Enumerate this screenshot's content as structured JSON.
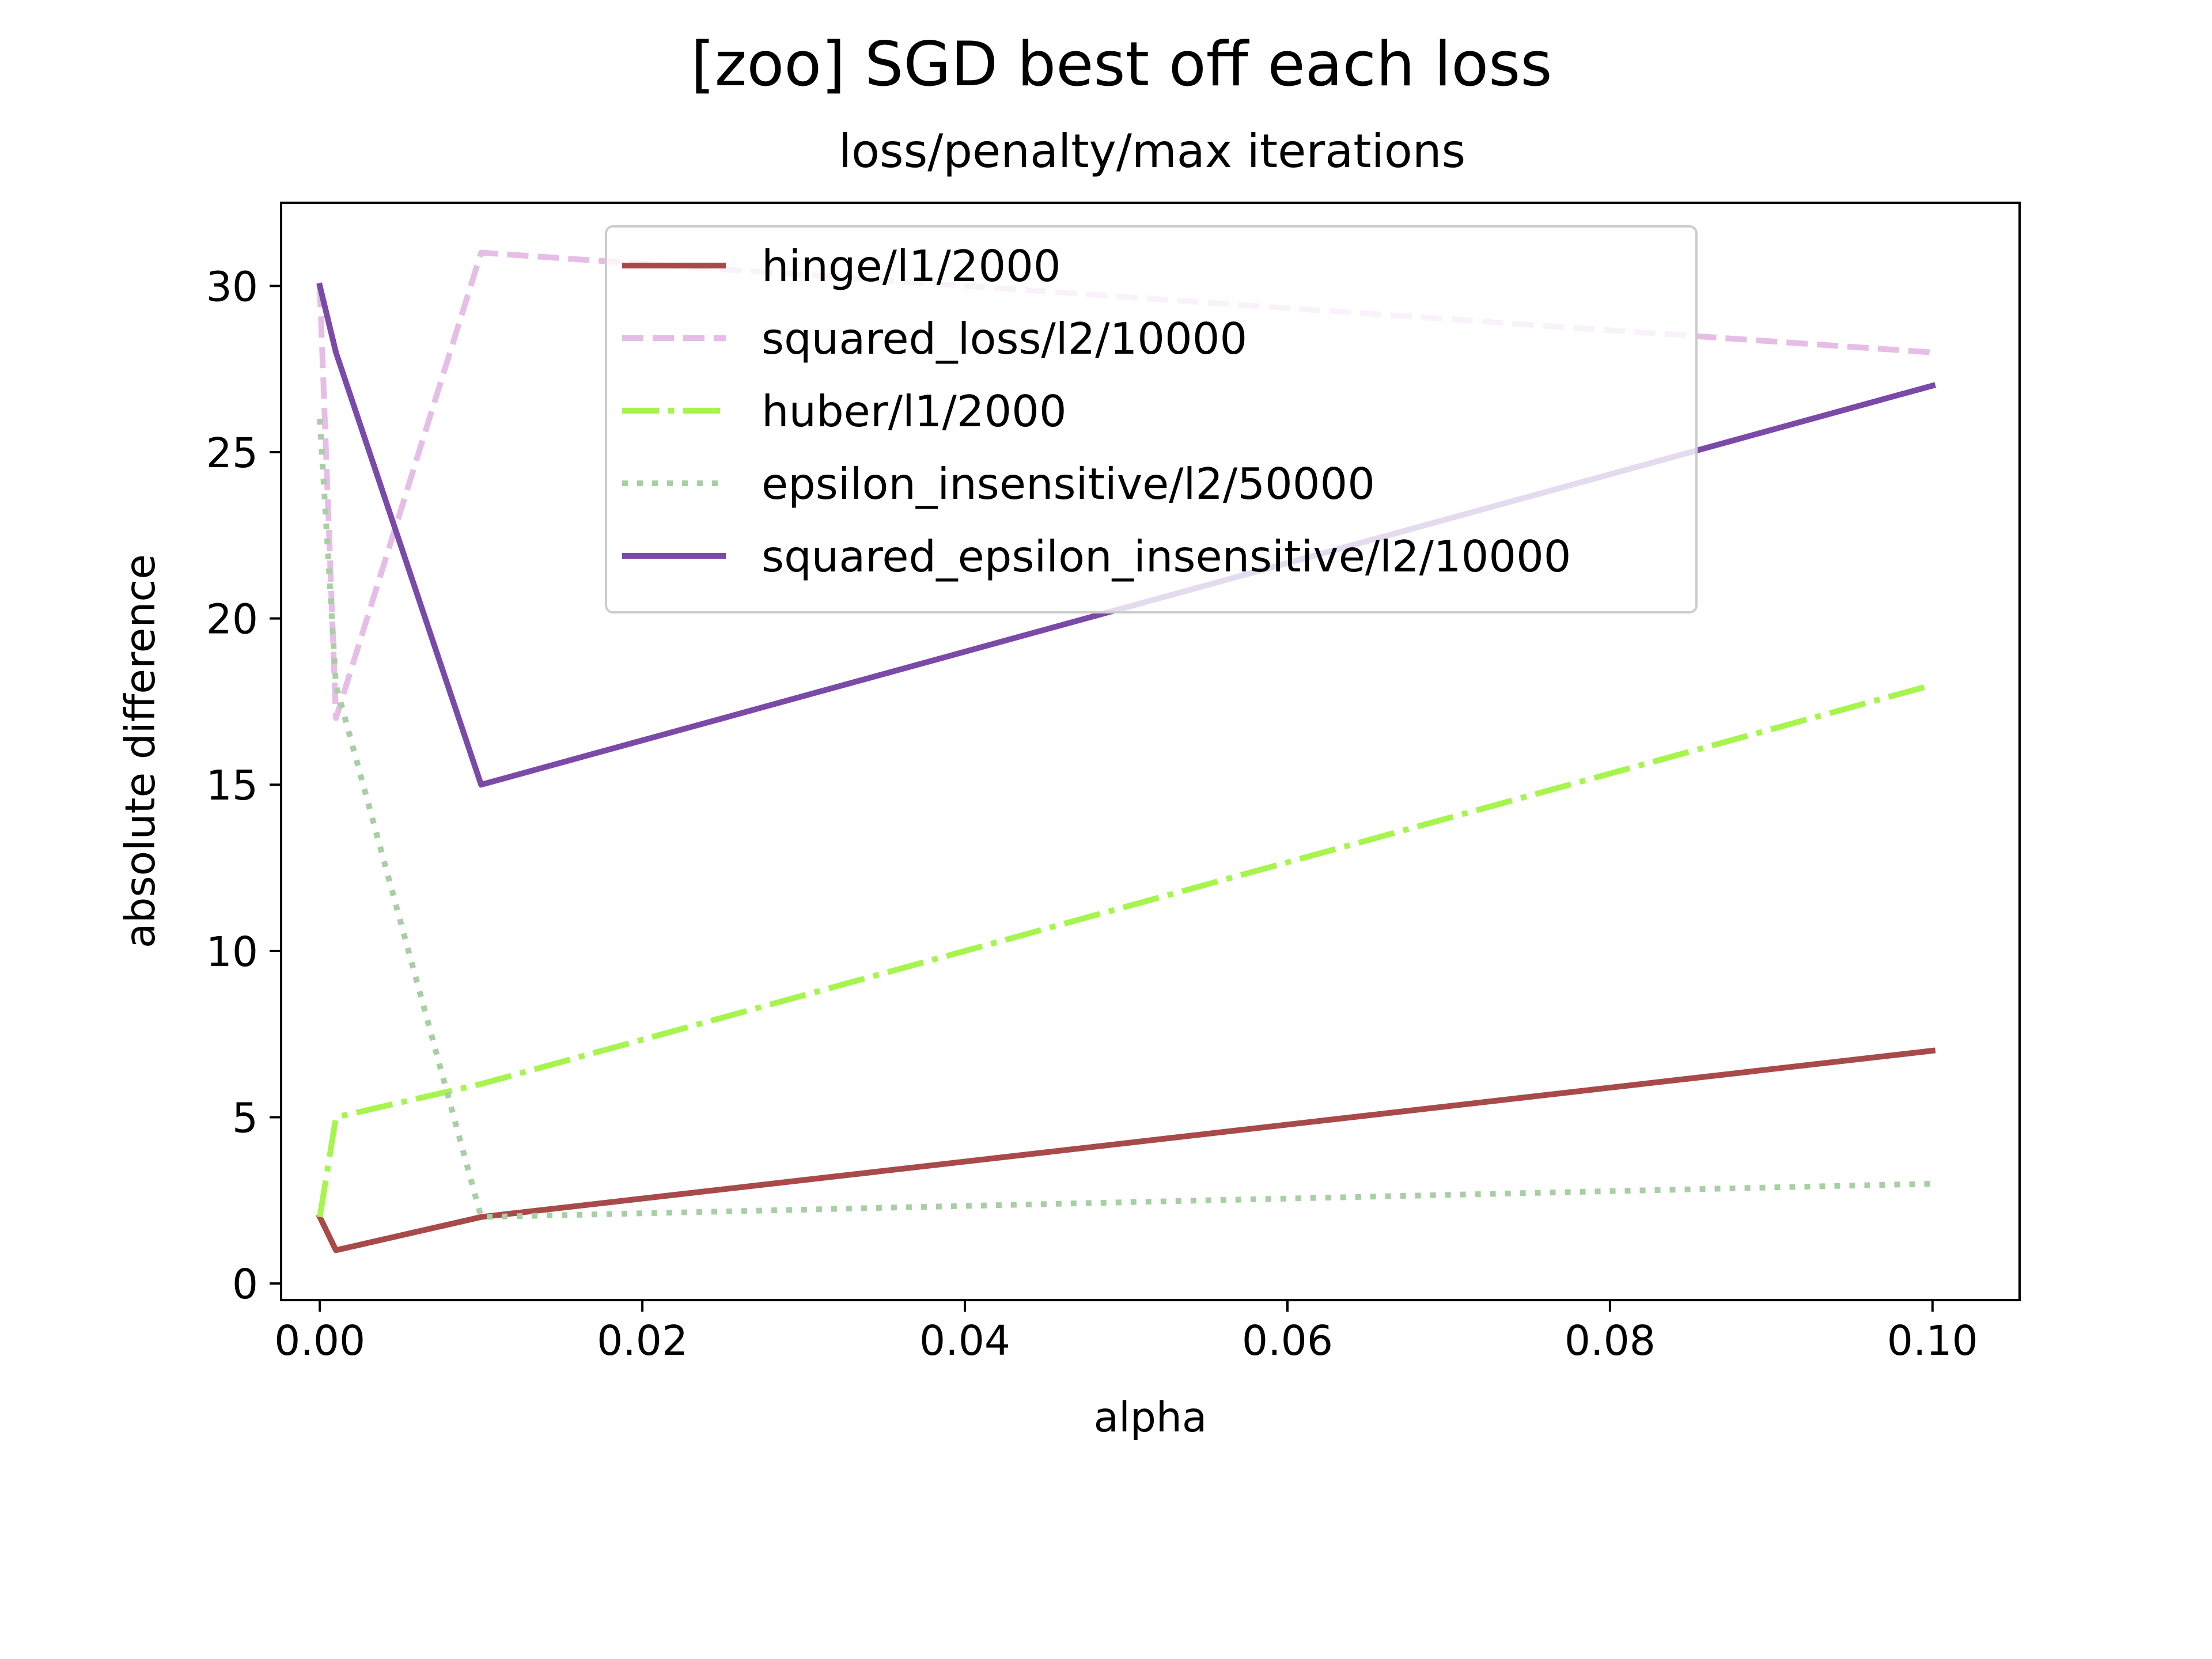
{
  "chart_data": {
    "type": "line",
    "title": "[zoo] SGD best off each loss",
    "subtitle": "loss/penalty/max iterations",
    "xlabel": "alpha",
    "ylabel": "absolute difference",
    "xlim": [
      -0.0024,
      0.1054
    ],
    "ylim": [
      -0.5,
      32.5
    ],
    "xticks": [
      0.0,
      0.02,
      0.04,
      0.06,
      0.08,
      0.1
    ],
    "xtick_labels": [
      "0.00",
      "0.02",
      "0.04",
      "0.06",
      "0.08",
      "0.10"
    ],
    "yticks": [
      0,
      5,
      10,
      15,
      20,
      25,
      30
    ],
    "ytick_labels": [
      "0",
      "5",
      "10",
      "15",
      "20",
      "25",
      "30"
    ],
    "grid": false,
    "legend_position": "upper-center",
    "x": [
      0.0,
      0.001,
      0.01,
      0.1
    ],
    "series": [
      {
        "name": "hinge/l1/2000",
        "values": [
          2,
          1,
          2,
          7
        ],
        "color": "#a84a4a",
        "style": "solid"
      },
      {
        "name": "squared_loss/l2/10000",
        "values": [
          30,
          17,
          31,
          28
        ],
        "color": "#e6bde6",
        "style": "dashed"
      },
      {
        "name": "huber/l1/2000",
        "values": [
          2,
          5,
          6,
          18
        ],
        "color": "#a6f54d",
        "style": "dashdot"
      },
      {
        "name": "epsilon_insensitive/l2/50000",
        "values": [
          26,
          18,
          2,
          3
        ],
        "color": "#a8cfa4",
        "style": "dotted"
      },
      {
        "name": "squared_epsilon_insensitive/l2/10000",
        "values": [
          30,
          28,
          15,
          27
        ],
        "color": "#7b4aa8",
        "style": "solid"
      }
    ]
  }
}
